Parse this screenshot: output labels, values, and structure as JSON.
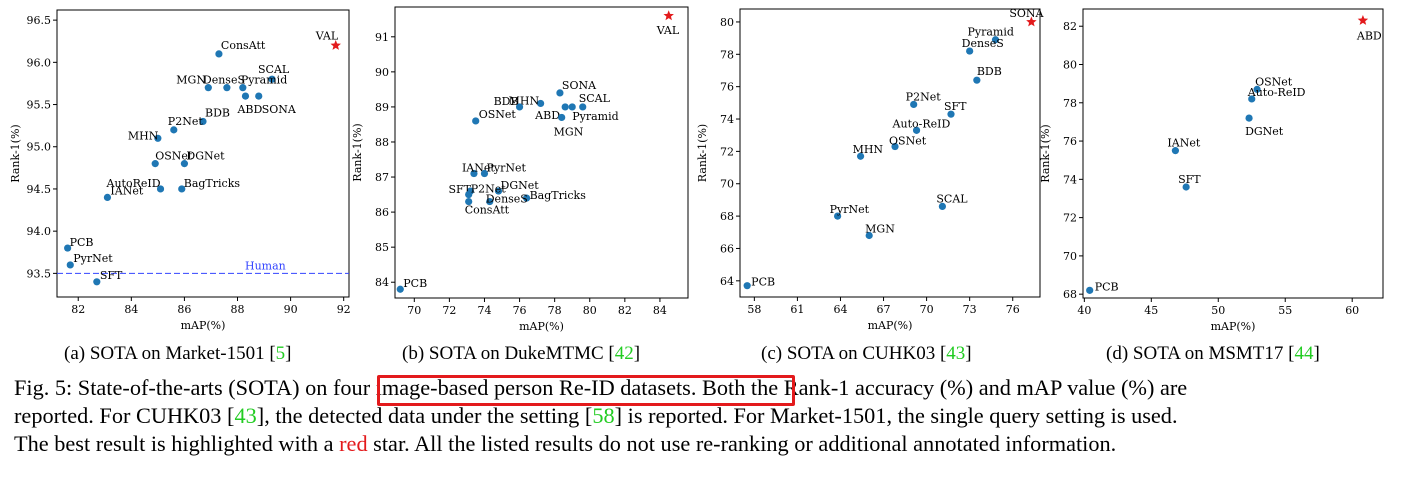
{
  "colors": {
    "point": "#1f77b4",
    "best": "#e31a1c",
    "human_line": "#3344ff",
    "citation": "#22cc22",
    "highlight": "#e31a1c"
  },
  "chart_data": [
    {
      "type": "scatter",
      "xlabel": "mAP(%)",
      "ylabel": "Rank-1(%)",
      "xlim": [
        81.2,
        92.2
      ],
      "ylim": [
        93.22,
        96.62
      ],
      "xticks": [
        "82",
        "84",
        "86",
        "88",
        "90",
        "92"
      ],
      "yticks": [
        "93.5",
        "94.0",
        "94.5",
        "95.0",
        "95.5",
        "96.0",
        "96.5"
      ],
      "grid": false,
      "points": [
        {
          "label": "VAL",
          "x": 91.7,
          "y": 96.2,
          "best": true
        },
        {
          "label": "ConsAtt",
          "x": 87.3,
          "y": 96.1
        },
        {
          "label": "SCAL",
          "x": 89.3,
          "y": 95.8
        },
        {
          "label": "MGN",
          "x": 86.9,
          "y": 95.7
        },
        {
          "label": "DenseS",
          "x": 87.6,
          "y": 95.7
        },
        {
          "label": "Pyramid",
          "x": 88.2,
          "y": 95.7
        },
        {
          "label": "ABD",
          "x": 88.3,
          "y": 95.6
        },
        {
          "label": "SONA",
          "x": 88.8,
          "y": 95.6
        },
        {
          "label": "BDB",
          "x": 86.7,
          "y": 95.3
        },
        {
          "label": "P2Net",
          "x": 85.6,
          "y": 95.2
        },
        {
          "label": "MHN",
          "x": 85.0,
          "y": 95.1
        },
        {
          "label": "OSNet",
          "x": 84.9,
          "y": 94.8
        },
        {
          "label": "DGNet",
          "x": 86.0,
          "y": 94.8
        },
        {
          "label": "AutoReID",
          "x": 85.1,
          "y": 94.5
        },
        {
          "label": "BagTricks",
          "x": 85.9,
          "y": 94.5
        },
        {
          "label": "IANet",
          "x": 83.1,
          "y": 94.4
        },
        {
          "label": "PCB",
          "x": 81.6,
          "y": 93.8
        },
        {
          "label": "PyrNet",
          "x": 81.7,
          "y": 93.6
        },
        {
          "label": "SFT",
          "x": 82.7,
          "y": 93.4
        }
      ],
      "reference_line": {
        "label": "Human",
        "y": 93.5
      }
    },
    {
      "type": "scatter",
      "xlabel": "mAP(%)",
      "ylabel": "Rank-1(%)",
      "xlim": [
        68.9,
        85.6
      ],
      "ylim": [
        83.55,
        91.85
      ],
      "xticks": [
        "70",
        "72",
        "74",
        "76",
        "78",
        "80",
        "82",
        "84"
      ],
      "yticks": [
        "84",
        "85",
        "86",
        "87",
        "88",
        "89",
        "90",
        "91"
      ],
      "grid": false,
      "points": [
        {
          "label": "VAL",
          "x": 84.5,
          "y": 91.6,
          "best": true
        },
        {
          "label": "SONA",
          "x": 78.3,
          "y": 89.4
        },
        {
          "label": "MHN",
          "x": 77.2,
          "y": 89.1
        },
        {
          "label": "BDB",
          "x": 76.0,
          "y": 89.0
        },
        {
          "label": "SCAL",
          "x": 79.6,
          "y": 89.0
        },
        {
          "label": "ABD",
          "x": 78.6,
          "y": 89.0
        },
        {
          "label": "Pyramid",
          "x": 79.0,
          "y": 89.0
        },
        {
          "label": "MGN",
          "x": 78.4,
          "y": 88.7
        },
        {
          "label": "OSNet",
          "x": 73.5,
          "y": 88.6
        },
        {
          "label": "IANet",
          "x": 73.4,
          "y": 87.1
        },
        {
          "label": "PyrNet",
          "x": 74.0,
          "y": 87.1
        },
        {
          "label": "SFT",
          "x": 73.2,
          "y": 86.6
        },
        {
          "label": "DGNet",
          "x": 74.8,
          "y": 86.6
        },
        {
          "label": "P2Net",
          "x": 73.1,
          "y": 86.5
        },
        {
          "label": "BagTricks",
          "x": 76.4,
          "y": 86.4
        },
        {
          "label": "DenseS",
          "x": 74.3,
          "y": 86.3
        },
        {
          "label": "ConsAtt",
          "x": 73.1,
          "y": 86.3
        },
        {
          "label": "PCB",
          "x": 69.2,
          "y": 83.8
        }
      ]
    },
    {
      "type": "scatter",
      "xlabel": "mAP(%)",
      "ylabel": "Rank-1(%)",
      "xlim": [
        57.0,
        77.9
      ],
      "ylim": [
        63.0,
        80.8
      ],
      "xticks": [
        "58",
        "61",
        "64",
        "67",
        "70",
        "73",
        "76"
      ],
      "yticks": [
        "64",
        "66",
        "68",
        "70",
        "72",
        "74",
        "76",
        "78",
        "80"
      ],
      "grid": false,
      "points": [
        {
          "label": "SONA",
          "x": 77.3,
          "y": 80.0,
          "best": true
        },
        {
          "label": "Pyramid",
          "x": 74.8,
          "y": 78.9
        },
        {
          "label": "DenseS",
          "x": 73.0,
          "y": 78.2
        },
        {
          "label": "BDB",
          "x": 73.5,
          "y": 76.4
        },
        {
          "label": "P2Net",
          "x": 69.1,
          "y": 74.9
        },
        {
          "label": "SFT",
          "x": 71.7,
          "y": 74.3
        },
        {
          "label": "Auto-ReID",
          "x": 69.3,
          "y": 73.3
        },
        {
          "label": "OSNet",
          "x": 67.8,
          "y": 72.3
        },
        {
          "label": "MHN",
          "x": 65.4,
          "y": 71.7
        },
        {
          "label": "SCAL",
          "x": 71.1,
          "y": 68.6
        },
        {
          "label": "PyrNet",
          "x": 63.8,
          "y": 68.0
        },
        {
          "label": "MGN",
          "x": 66.0,
          "y": 66.8
        },
        {
          "label": "PCB",
          "x": 57.5,
          "y": 63.7
        }
      ]
    },
    {
      "type": "scatter",
      "xlabel": "mAP(%)",
      "ylabel": "Rank-1(%)",
      "xlim": [
        39.9,
        62.3
      ],
      "ylim": [
        67.8,
        82.9
      ],
      "xticks": [
        "40",
        "45",
        "50",
        "55",
        "60"
      ],
      "yticks": [
        "68",
        "70",
        "72",
        "74",
        "76",
        "78",
        "80",
        "82"
      ],
      "grid": false,
      "points": [
        {
          "label": "ABD",
          "x": 60.8,
          "y": 82.3,
          "best": true
        },
        {
          "label": "OSNet",
          "x": 52.9,
          "y": 78.7
        },
        {
          "label": "Auto-ReID",
          "x": 52.5,
          "y": 78.2
        },
        {
          "label": "DGNet",
          "x": 52.3,
          "y": 77.2
        },
        {
          "label": "IANet",
          "x": 46.8,
          "y": 75.5
        },
        {
          "label": "SFT",
          "x": 47.6,
          "y": 73.6
        },
        {
          "label": "PCB",
          "x": 40.4,
          "y": 68.2
        }
      ]
    }
  ],
  "subcaptions": [
    {
      "text": "(a) SOTA on Market-1501 [",
      "ref": "5",
      "close": "]"
    },
    {
      "text": "(b) SOTA on DukeMTMC [",
      "ref": "42",
      "close": "]"
    },
    {
      "text": "(c) SOTA on CUHK03 [",
      "ref": "43",
      "close": "]"
    },
    {
      "text": "(d) SOTA on MSMT17 [",
      "ref": "44",
      "close": "]"
    }
  ],
  "caption": {
    "l1_a": "Fig. 5: State-of-the-arts (SOTA) on ",
    "l1_highlight": "four image-based person Re-ID datasets.",
    "l1_b": " Both the Rank-1 accuracy (%) and mAP value (%) are",
    "l2_a": "reported. For CUHK03 [",
    "l2_ref1": "43",
    "l2_b": "], the detected data under the setting [",
    "l2_ref2": "58",
    "l2_c": "] is reported. For Market-1501, the single query setting is used.",
    "l3_a": "The best result is highlighted with a ",
    "l3_red": "red",
    "l3_b": " star. All the listed results do not use re-ranking or additional annotated information."
  }
}
